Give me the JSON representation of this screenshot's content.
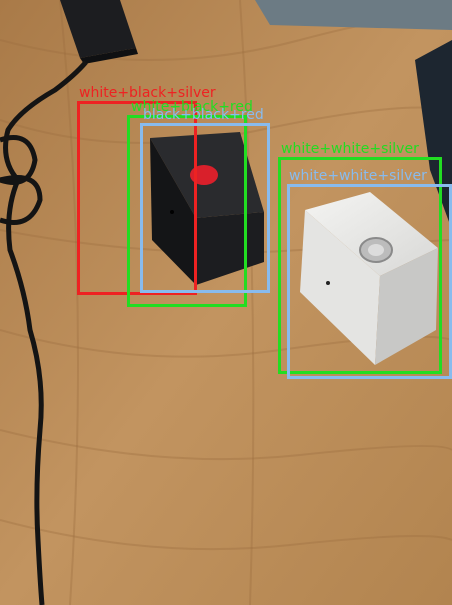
{
  "colors": {
    "red_box": "#ee2222",
    "green_box": "#22dd22",
    "blue_box": "#88bbee"
  },
  "detections": [
    {
      "label": "white+black+silver",
      "color_key": "red_box"
    },
    {
      "label": "white+black+red",
      "color_key": "green_box"
    },
    {
      "label": "black+black+red",
      "color_key": "blue_box"
    },
    {
      "label": "white+white+silver",
      "color_key": "green_box"
    },
    {
      "label": "white+white+silver",
      "color_key": "blue_box"
    }
  ]
}
